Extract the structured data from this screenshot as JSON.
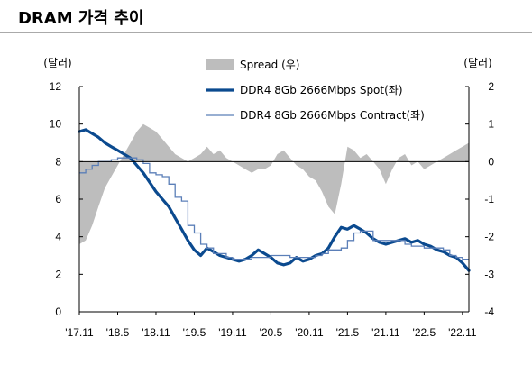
{
  "chart_data": {
    "type": "line",
    "title": "DRAM 가격 추이",
    "left_axis_unit": "(달러)",
    "right_axis_unit": "(달러)",
    "left_axis": {
      "range": [
        0,
        12
      ],
      "ticks": [
        "0",
        "2",
        "4",
        "6",
        "8",
        "10",
        "12"
      ]
    },
    "right_axis": {
      "range": [
        -4,
        2
      ],
      "ticks": [
        "-4",
        "-3",
        "-2",
        "-1",
        "0",
        "1",
        "2"
      ]
    },
    "x_axis": {
      "range": [
        2017.833,
        2022.917
      ],
      "ticks": [
        "'17.11",
        "'18.5",
        "'18.11",
        "'19.5",
        "'19.11",
        "'20.5",
        "'20.11",
        "'21.5",
        "'21.11",
        "'22.5",
        "'22.11"
      ],
      "tick_values": [
        2017.833,
        2018.333,
        2018.833,
        2019.333,
        2019.833,
        2020.333,
        2020.833,
        2021.333,
        2021.833,
        2022.333,
        2022.833
      ]
    },
    "legend": [
      "Spread (우)",
      "DDR4 8Gb 2666Mbps Spot(좌)",
      "DDR4 8Gb 2666Mbps Contract(좌)"
    ],
    "legend_placement": "top-center",
    "grid": false,
    "series": [
      {
        "name": "Spread (우)",
        "axis": "right",
        "style": "area",
        "color": "#bdbdbd",
        "x": [
          2017.833,
          2017.917,
          2018.0,
          2018.083,
          2018.167,
          2018.25,
          2018.333,
          2018.417,
          2018.5,
          2018.583,
          2018.667,
          2018.75,
          2018.833,
          2018.917,
          2019.0,
          2019.083,
          2019.167,
          2019.25,
          2019.333,
          2019.417,
          2019.5,
          2019.583,
          2019.667,
          2019.75,
          2019.833,
          2019.917,
          2020.0,
          2020.083,
          2020.167,
          2020.25,
          2020.333,
          2020.417,
          2020.5,
          2020.583,
          2020.667,
          2020.75,
          2020.833,
          2020.917,
          2021.0,
          2021.083,
          2021.167,
          2021.25,
          2021.333,
          2021.417,
          2021.5,
          2021.583,
          2021.667,
          2021.75,
          2021.833,
          2021.917,
          2022.0,
          2022.083,
          2022.167,
          2022.25,
          2022.333,
          2022.417,
          2022.5,
          2022.583,
          2022.667,
          2022.75,
          2022.833,
          2022.917
        ],
        "values": [
          -2.2,
          -2.1,
          -1.7,
          -1.2,
          -0.7,
          -0.4,
          -0.1,
          0.2,
          0.5,
          0.8,
          1.0,
          0.9,
          0.8,
          0.6,
          0.4,
          0.2,
          0.1,
          0.0,
          0.1,
          0.2,
          0.4,
          0.2,
          0.3,
          0.1,
          0.0,
          -0.1,
          -0.2,
          -0.3,
          -0.2,
          -0.2,
          -0.1,
          0.2,
          0.3,
          0.1,
          -0.1,
          -0.2,
          -0.4,
          -0.5,
          -0.8,
          -1.2,
          -1.4,
          -0.6,
          0.4,
          0.3,
          0.1,
          0.2,
          0.0,
          -0.2,
          -0.6,
          -0.2,
          0.1,
          0.2,
          -0.1,
          0.0,
          -0.2,
          -0.1,
          0.0,
          0.1,
          0.2,
          0.3,
          0.4,
          0.5
        ]
      },
      {
        "name": "DDR4 8Gb 2666Mbps Spot(좌)",
        "axis": "left",
        "style": "thick-line",
        "color": "#0b4a8f",
        "x": [
          2017.833,
          2017.917,
          2018.0,
          2018.083,
          2018.167,
          2018.25,
          2018.333,
          2018.417,
          2018.5,
          2018.583,
          2018.667,
          2018.75,
          2018.833,
          2018.917,
          2019.0,
          2019.083,
          2019.167,
          2019.25,
          2019.333,
          2019.417,
          2019.5,
          2019.583,
          2019.667,
          2019.75,
          2019.833,
          2019.917,
          2020.0,
          2020.083,
          2020.167,
          2020.25,
          2020.333,
          2020.417,
          2020.5,
          2020.583,
          2020.667,
          2020.75,
          2020.833,
          2020.917,
          2021.0,
          2021.083,
          2021.167,
          2021.25,
          2021.333,
          2021.417,
          2021.5,
          2021.583,
          2021.667,
          2021.75,
          2021.833,
          2021.917,
          2022.0,
          2022.083,
          2022.167,
          2022.25,
          2022.333,
          2022.417,
          2022.5,
          2022.583,
          2022.667,
          2022.75,
          2022.833,
          2022.917
        ],
        "values": [
          9.6,
          9.7,
          9.5,
          9.3,
          9.0,
          8.8,
          8.6,
          8.4,
          8.2,
          7.8,
          7.4,
          6.9,
          6.4,
          6.0,
          5.6,
          5.0,
          4.4,
          3.8,
          3.3,
          3.0,
          3.4,
          3.2,
          3.0,
          2.9,
          2.8,
          2.7,
          2.8,
          3.0,
          3.3,
          3.1,
          2.9,
          2.6,
          2.5,
          2.6,
          2.9,
          2.7,
          2.8,
          3.0,
          3.1,
          3.4,
          4.0,
          4.5,
          4.4,
          4.6,
          4.4,
          4.2,
          3.9,
          3.7,
          3.6,
          3.7,
          3.8,
          3.9,
          3.7,
          3.8,
          3.6,
          3.5,
          3.3,
          3.2,
          3.0,
          2.9,
          2.6,
          2.2
        ]
      },
      {
        "name": "DDR4 8Gb 2666Mbps Contract(좌)",
        "axis": "left",
        "style": "thin-line",
        "color": "#5b7fb8",
        "x": [
          2017.833,
          2017.917,
          2018.0,
          2018.083,
          2018.167,
          2018.25,
          2018.333,
          2018.417,
          2018.5,
          2018.583,
          2018.667,
          2018.75,
          2018.833,
          2018.917,
          2019.0,
          2019.083,
          2019.167,
          2019.25,
          2019.333,
          2019.417,
          2019.5,
          2019.583,
          2019.667,
          2019.75,
          2019.833,
          2019.917,
          2020.0,
          2020.083,
          2020.167,
          2020.25,
          2020.333,
          2020.417,
          2020.5,
          2020.583,
          2020.667,
          2020.75,
          2020.833,
          2020.917,
          2021.0,
          2021.083,
          2021.167,
          2021.25,
          2021.333,
          2021.417,
          2021.5,
          2021.583,
          2021.667,
          2021.75,
          2021.833,
          2021.917,
          2022.0,
          2022.083,
          2022.167,
          2022.25,
          2022.333,
          2022.417,
          2022.5,
          2022.583,
          2022.667,
          2022.75,
          2022.833,
          2022.917
        ],
        "values": [
          7.4,
          7.6,
          7.8,
          8.0,
          8.0,
          8.1,
          8.2,
          8.2,
          8.2,
          8.1,
          7.9,
          7.4,
          7.3,
          7.2,
          6.8,
          6.1,
          5.9,
          4.6,
          4.2,
          3.6,
          3.4,
          3.1,
          3.1,
          2.9,
          2.8,
          2.8,
          2.8,
          2.9,
          2.9,
          2.9,
          3.0,
          3.0,
          3.0,
          2.9,
          2.9,
          2.9,
          2.9,
          3.0,
          3.1,
          3.3,
          3.3,
          3.4,
          3.8,
          4.2,
          4.3,
          4.3,
          3.8,
          3.8,
          3.8,
          3.8,
          3.8,
          3.6,
          3.5,
          3.5,
          3.4,
          3.4,
          3.4,
          3.3,
          3.0,
          2.9,
          2.8,
          2.8
        ]
      }
    ]
  }
}
